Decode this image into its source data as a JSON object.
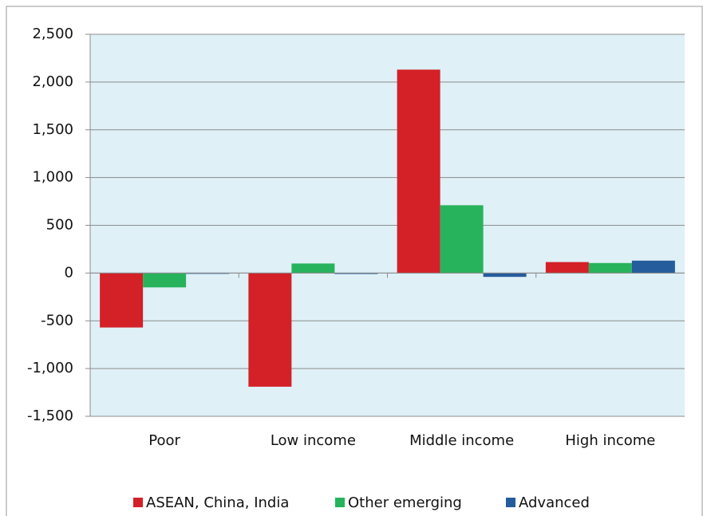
{
  "chart_data": {
    "type": "bar",
    "categories": [
      "Poor",
      "Low income",
      "Middle income",
      "High income"
    ],
    "series": [
      {
        "name": "ASEAN, China, India",
        "color": "#d42027",
        "values": [
          -570,
          -1190,
          2130,
          115
        ]
      },
      {
        "name": "Other emerging",
        "color": "#27b35c",
        "values": [
          -150,
          100,
          710,
          105
        ]
      },
      {
        "name": "Advanced",
        "color": "#255c9c",
        "values": [
          0,
          -10,
          -40,
          130
        ]
      }
    ],
    "ylim": [
      -1500,
      2500
    ],
    "yticks": [
      {
        "value": -1500,
        "label": "-1,500"
      },
      {
        "value": -1000,
        "label": "-1,000"
      },
      -500,
      0,
      500,
      {
        "value": 1000,
        "label": "1,000"
      },
      {
        "value": 1500,
        "label": "1,500"
      },
      {
        "value": 2000,
        "label": "2,000"
      },
      {
        "value": 2500,
        "label": "2,500"
      }
    ],
    "grid": true,
    "legend": "bottom"
  }
}
